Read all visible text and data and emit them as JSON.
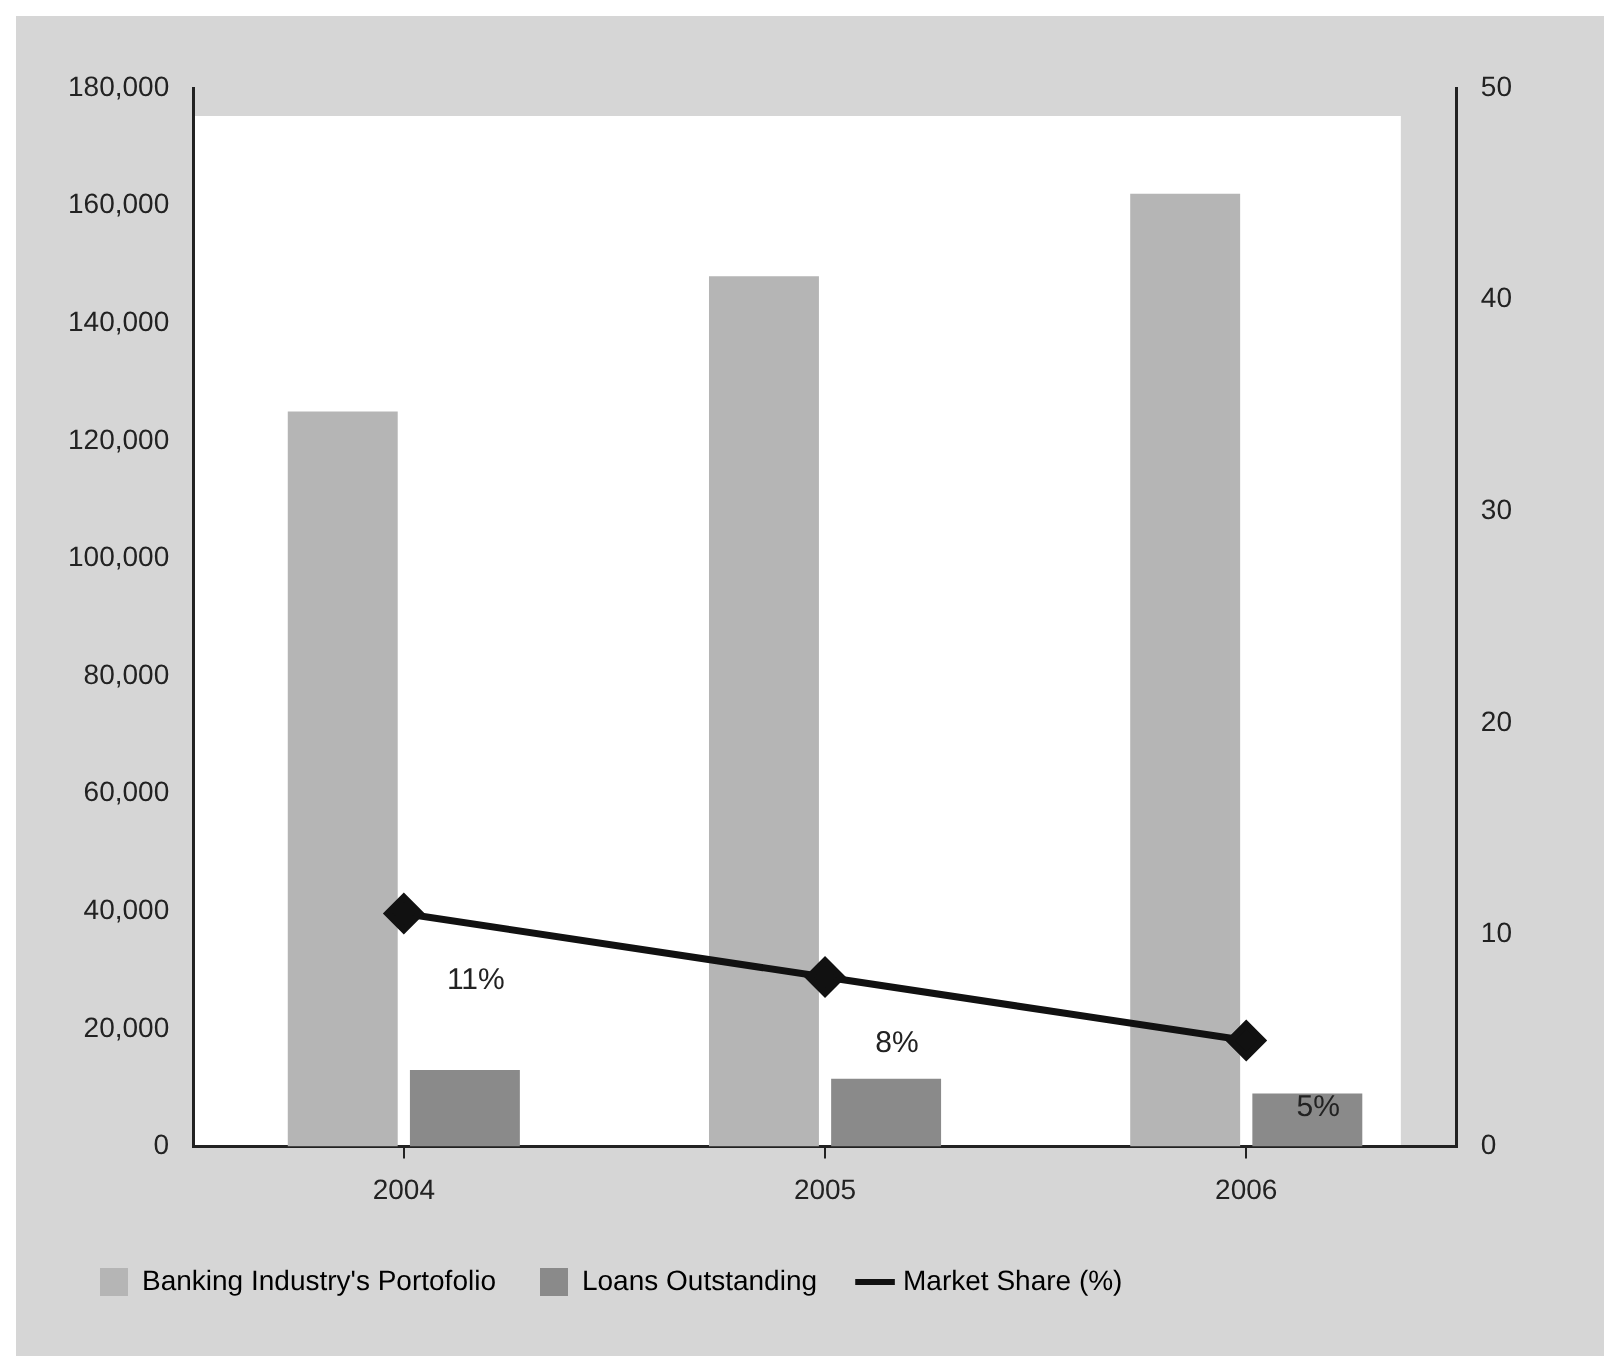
{
  "chart_data": {
    "type": "bar",
    "categories": [
      "2004",
      "2005",
      "2006"
    ],
    "series": [
      {
        "name": "Banking Industry's Portofolio",
        "color": "#b5b5b5",
        "values": [
          125000,
          148000,
          162000
        ]
      },
      {
        "name": "Loans Outstanding",
        "color": "#8a8a8a",
        "values": [
          13000,
          11500,
          9000
        ]
      },
      {
        "name": "Market Share (%)",
        "type": "line",
        "axis": "y2",
        "color": "#111111",
        "marker": "diamond",
        "values": [
          11,
          8,
          5
        ],
        "value_labels": [
          "11%",
          "8%",
          "5%"
        ]
      }
    ],
    "ylim": [
      0,
      180000
    ],
    "yticks": [
      {
        "value": 0,
        "label": "0"
      },
      {
        "value": 20000,
        "label": "20,000"
      },
      {
        "value": 40000,
        "label": "40,000"
      },
      {
        "value": 60000,
        "label": "60,000"
      },
      {
        "value": 80000,
        "label": "80,000"
      },
      {
        "value": 100000,
        "label": "100,000"
      },
      {
        "value": 120000,
        "label": "120,000"
      },
      {
        "value": 140000,
        "label": "140,000"
      },
      {
        "value": 160000,
        "label": "160,000"
      },
      {
        "value": 180000,
        "label": "180,000"
      }
    ],
    "y2lim": [
      0,
      50
    ],
    "y2ticks": [
      0,
      10,
      20,
      30,
      40,
      50
    ],
    "grid": false,
    "legend": "bottom"
  }
}
